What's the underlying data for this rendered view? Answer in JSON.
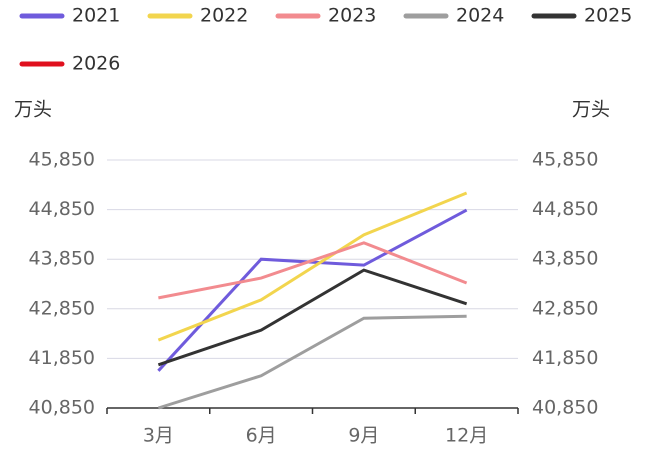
{
  "chart_data": {
    "type": "line",
    "y_unit": "万头",
    "y2_unit": "万头",
    "categories": [
      "3月",
      "6月",
      "9月",
      "12月"
    ],
    "series": [
      {
        "name": "2021",
        "color": "#6f5bdc",
        "values": [
          41600,
          43850,
          43730,
          44840
        ]
      },
      {
        "name": "2022",
        "color": "#f2d54e",
        "values": [
          42220,
          43030,
          44340,
          45185
        ]
      },
      {
        "name": "2023",
        "color": "#f28b8f",
        "values": [
          43070,
          43470,
          44180,
          43370
        ]
      },
      {
        "name": "2024",
        "color": "#9e9e9e",
        "values": [
          40850,
          41500,
          42660,
          42700
        ]
      },
      {
        "name": "2025",
        "color": "#333333",
        "values": [
          41720,
          42420,
          43630,
          42950
        ]
      },
      {
        "name": "2026",
        "color": "#e0101e",
        "values": [
          null,
          null,
          null,
          null
        ]
      }
    ],
    "ylim": [
      40850,
      45850
    ],
    "yticks": [
      {
        "value": 40850,
        "label": "40,850"
      },
      {
        "value": 41850,
        "label": "41,850"
      },
      {
        "value": 42850,
        "label": "42,850"
      },
      {
        "value": 43850,
        "label": "43,850"
      },
      {
        "value": 44850,
        "label": "44,850"
      },
      {
        "value": 45850,
        "label": "45,850"
      }
    ],
    "y2lim": [
      40850,
      45850
    ],
    "y2ticks": [
      {
        "value": 40850,
        "label": "40,850"
      },
      {
        "value": 41850,
        "label": "41,850"
      },
      {
        "value": 42850,
        "label": "42,850"
      },
      {
        "value": 43850,
        "label": "43,850"
      },
      {
        "value": 44850,
        "label": "44,850"
      },
      {
        "value": 45850,
        "label": "45,850"
      }
    ],
    "grid": true
  }
}
